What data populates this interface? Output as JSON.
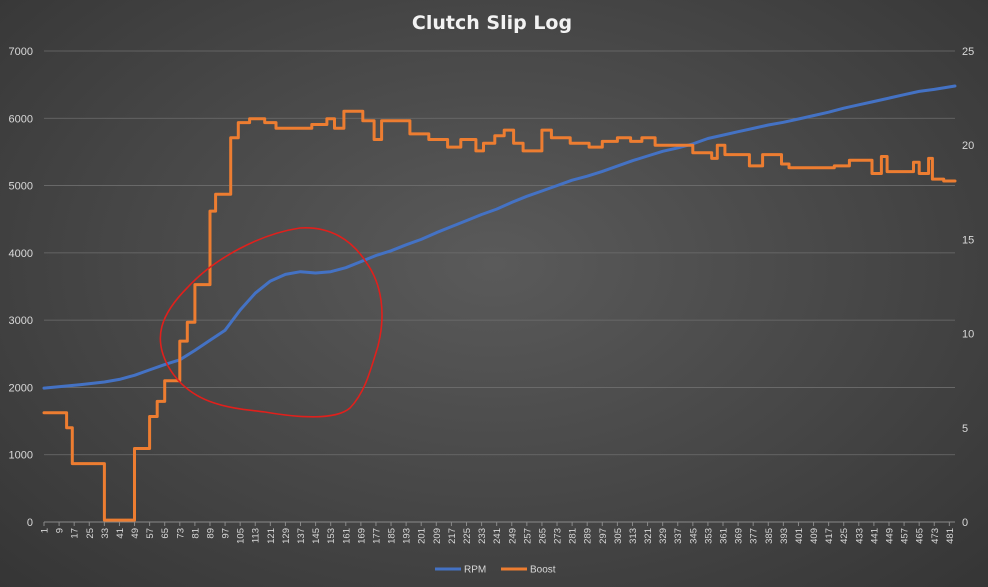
{
  "chart_data": {
    "type": "line",
    "title": "Clutch Slip Log",
    "xlabel": "",
    "ylabel": "",
    "y_left": {
      "lim": [
        0,
        7000
      ],
      "ticks": [
        0,
        1000,
        2000,
        3000,
        4000,
        5000,
        6000,
        7000
      ]
    },
    "y_right": {
      "lim": [
        0,
        25
      ],
      "ticks": [
        0,
        5,
        10,
        15,
        20,
        25
      ]
    },
    "x": {
      "start": 1,
      "end": 484,
      "ticks": [
        1,
        9,
        17,
        25,
        33,
        41,
        49,
        57,
        65,
        73,
        81,
        89,
        97,
        105,
        113,
        121,
        129,
        137,
        145,
        153,
        161,
        169,
        177,
        185,
        193,
        201,
        209,
        217,
        225,
        233,
        241,
        249,
        257,
        265,
        273,
        281,
        289,
        297,
        305,
        313,
        321,
        329,
        337,
        345,
        353,
        361,
        369,
        377,
        385,
        393,
        401,
        409,
        417,
        425,
        433,
        441,
        449,
        457,
        465,
        473,
        481
      ]
    },
    "grid": true,
    "legend_position": "bottom",
    "series": [
      {
        "name": "RPM",
        "axis": "left",
        "color": "#4472c4",
        "points": [
          [
            1,
            1990
          ],
          [
            20,
            2040
          ],
          [
            33,
            2080
          ],
          [
            41,
            2120
          ],
          [
            49,
            2180
          ],
          [
            57,
            2260
          ],
          [
            65,
            2340
          ],
          [
            73,
            2410
          ],
          [
            81,
            2550
          ],
          [
            89,
            2700
          ],
          [
            97,
            2850
          ],
          [
            105,
            3150
          ],
          [
            113,
            3400
          ],
          [
            121,
            3580
          ],
          [
            129,
            3680
          ],
          [
            137,
            3720
          ],
          [
            145,
            3700
          ],
          [
            153,
            3720
          ],
          [
            161,
            3780
          ],
          [
            169,
            3870
          ],
          [
            177,
            3960
          ],
          [
            185,
            4030
          ],
          [
            193,
            4120
          ],
          [
            201,
            4200
          ],
          [
            209,
            4300
          ],
          [
            217,
            4390
          ],
          [
            225,
            4480
          ],
          [
            233,
            4570
          ],
          [
            241,
            4650
          ],
          [
            249,
            4750
          ],
          [
            257,
            4840
          ],
          [
            265,
            4920
          ],
          [
            273,
            5000
          ],
          [
            281,
            5080
          ],
          [
            289,
            5140
          ],
          [
            297,
            5210
          ],
          [
            305,
            5290
          ],
          [
            313,
            5370
          ],
          [
            321,
            5440
          ],
          [
            329,
            5510
          ],
          [
            337,
            5560
          ],
          [
            345,
            5620
          ],
          [
            353,
            5700
          ],
          [
            361,
            5750
          ],
          [
            369,
            5800
          ],
          [
            377,
            5850
          ],
          [
            385,
            5900
          ],
          [
            393,
            5940
          ],
          [
            401,
            5990
          ],
          [
            409,
            6040
          ],
          [
            417,
            6090
          ],
          [
            425,
            6150
          ],
          [
            433,
            6200
          ],
          [
            441,
            6250
          ],
          [
            449,
            6300
          ],
          [
            457,
            6350
          ],
          [
            465,
            6400
          ],
          [
            473,
            6430
          ],
          [
            484,
            6480
          ]
        ]
      },
      {
        "name": "Boost",
        "axis": "right",
        "color": "#ed7d31",
        "points": [
          [
            1,
            5.8
          ],
          [
            13,
            5.8
          ],
          [
            13,
            5.0
          ],
          [
            16,
            5.0
          ],
          [
            16,
            3.1
          ],
          [
            33,
            3.1
          ],
          [
            33,
            0.1
          ],
          [
            49,
            0.1
          ],
          [
            49,
            3.9
          ],
          [
            57,
            3.9
          ],
          [
            57,
            5.6
          ],
          [
            61,
            5.6
          ],
          [
            61,
            6.4
          ],
          [
            65,
            6.4
          ],
          [
            65,
            7.5
          ],
          [
            73,
            7.5
          ],
          [
            73,
            9.6
          ],
          [
            77,
            9.6
          ],
          [
            77,
            10.6
          ],
          [
            81,
            10.6
          ],
          [
            81,
            12.6
          ],
          [
            89,
            12.6
          ],
          [
            89,
            16.5
          ],
          [
            92,
            16.5
          ],
          [
            92,
            17.4
          ],
          [
            100,
            17.4
          ],
          [
            100,
            20.4
          ],
          [
            104,
            20.4
          ],
          [
            104,
            21.2
          ],
          [
            110,
            21.2
          ],
          [
            110,
            21.4
          ],
          [
            118,
            21.4
          ],
          [
            118,
            21.2
          ],
          [
            124,
            21.2
          ],
          [
            124,
            20.9
          ],
          [
            143,
            20.9
          ],
          [
            143,
            21.1
          ],
          [
            151,
            21.1
          ],
          [
            151,
            21.4
          ],
          [
            155,
            21.4
          ],
          [
            155,
            20.9
          ],
          [
            160,
            20.9
          ],
          [
            160,
            21.8
          ],
          [
            170,
            21.8
          ],
          [
            170,
            21.3
          ],
          [
            176,
            21.3
          ],
          [
            176,
            20.3
          ],
          [
            180,
            20.3
          ],
          [
            180,
            21.3
          ],
          [
            195,
            21.3
          ],
          [
            195,
            20.6
          ],
          [
            205,
            20.6
          ],
          [
            205,
            20.3
          ],
          [
            215,
            20.3
          ],
          [
            215,
            19.9
          ],
          [
            222,
            19.9
          ],
          [
            222,
            20.3
          ],
          [
            230,
            20.3
          ],
          [
            230,
            19.7
          ],
          [
            234,
            19.7
          ],
          [
            234,
            20.1
          ],
          [
            240,
            20.1
          ],
          [
            240,
            20.5
          ],
          [
            245,
            20.5
          ],
          [
            245,
            20.8
          ],
          [
            250,
            20.8
          ],
          [
            250,
            20.1
          ],
          [
            255,
            20.1
          ],
          [
            255,
            19.7
          ],
          [
            265,
            19.7
          ],
          [
            265,
            20.8
          ],
          [
            270,
            20.8
          ],
          [
            270,
            20.4
          ],
          [
            280,
            20.4
          ],
          [
            280,
            20.1
          ],
          [
            290,
            20.1
          ],
          [
            290,
            19.9
          ],
          [
            297,
            19.9
          ],
          [
            297,
            20.2
          ],
          [
            305,
            20.2
          ],
          [
            305,
            20.4
          ],
          [
            312,
            20.4
          ],
          [
            312,
            20.2
          ],
          [
            318,
            20.2
          ],
          [
            318,
            20.4
          ],
          [
            325,
            20.4
          ],
          [
            325,
            20.0
          ],
          [
            345,
            20.0
          ],
          [
            345,
            19.6
          ],
          [
            355,
            19.6
          ],
          [
            355,
            19.3
          ],
          [
            358,
            19.3
          ],
          [
            358,
            20.0
          ],
          [
            362,
            20.0
          ],
          [
            362,
            19.5
          ],
          [
            375,
            19.5
          ],
          [
            375,
            18.9
          ],
          [
            382,
            18.9
          ],
          [
            382,
            19.5
          ],
          [
            392,
            19.5
          ],
          [
            392,
            19.0
          ],
          [
            396,
            19.0
          ],
          [
            396,
            18.8
          ],
          [
            420,
            18.8
          ],
          [
            420,
            18.9
          ],
          [
            428,
            18.9
          ],
          [
            428,
            19.2
          ],
          [
            440,
            19.2
          ],
          [
            440,
            18.5
          ],
          [
            445,
            18.5
          ],
          [
            445,
            19.4
          ],
          [
            448,
            19.4
          ],
          [
            448,
            18.6
          ],
          [
            462,
            18.6
          ],
          [
            462,
            19.1
          ],
          [
            465,
            19.1
          ],
          [
            465,
            18.5
          ],
          [
            470,
            18.5
          ],
          [
            470,
            19.3
          ],
          [
            472,
            19.3
          ],
          [
            472,
            18.2
          ],
          [
            478,
            18.2
          ],
          [
            478,
            18.1
          ],
          [
            484,
            18.1
          ]
        ]
      }
    ]
  }
}
